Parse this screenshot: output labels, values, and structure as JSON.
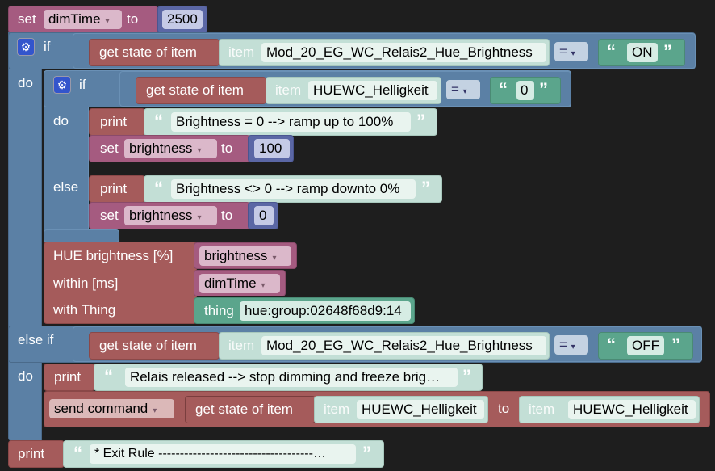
{
  "set_dimtime": {
    "set": "set",
    "var": "dimTime",
    "arrow": "▾",
    "to": "to",
    "value": "2500"
  },
  "if1": {
    "if": "if",
    "do": "do",
    "else_if": "else if",
    "do2": "do",
    "cond": {
      "get": "get state of item",
      "item": "item",
      "item_name": "Mod_20_EG_WC_Relais2_Hue_Brightness",
      "op": "=",
      "arrow": "▾",
      "value": "ON"
    }
  },
  "if2": {
    "if": "if",
    "do": "do",
    "else": "else",
    "cond": {
      "get": "get state of item",
      "item": "item",
      "item_name": "HUEWC_Helligkeit",
      "op": "=",
      "arrow": "▾",
      "value": "0"
    },
    "do_print": {
      "label": "print",
      "text": "Brightness = 0 --> ramp up to 100%"
    },
    "do_set": {
      "set": "set",
      "var": "brightness",
      "arrow": "▾",
      "to": "to",
      "value": "100"
    },
    "else_print": {
      "label": "print",
      "text": "Brightness <> 0 --> ramp downto 0%"
    },
    "else_set": {
      "set": "set",
      "var": "brightness",
      "arrow": "▾",
      "to": "to",
      "value": "0"
    }
  },
  "hue": {
    "brightness_label": "HUE brightness [%]",
    "within_label": "within [ms]",
    "thing_label": "with Thing",
    "brightness_var": "brightness",
    "within_var": "dimTime",
    "arrow": "▾",
    "thing": "thing",
    "thing_value": "hue:group:02648f68d9:14"
  },
  "elseif_cond": {
    "get": "get state of item",
    "item": "item",
    "item_name": "Mod_20_EG_WC_Relais2_Hue_Brightness",
    "op": "=",
    "arrow": "▾",
    "value": "OFF"
  },
  "elseif_print": {
    "label": "print",
    "text": "Relais released --> stop dimming and freeze brig…"
  },
  "send": {
    "command": "send command",
    "arrow": "▾",
    "get": "get state of item",
    "item": "item",
    "item_name": "HUEWC_Helligkeit",
    "to": "to",
    "target_item": "item",
    "target_name": "HUEWC_Helligkeit"
  },
  "exit_print": {
    "label": "print",
    "text": "* Exit Rule ------------------------------------…"
  },
  "quote_open": "“",
  "quote_close": "”",
  "colors": {
    "background": "#1e1e1e",
    "variables": "#a55b80",
    "logic": "#5b80a5",
    "items": "#a55b5b",
    "math": "#5b67a5",
    "strings": "#c3dfd6",
    "things": "#5ba58c"
  }
}
